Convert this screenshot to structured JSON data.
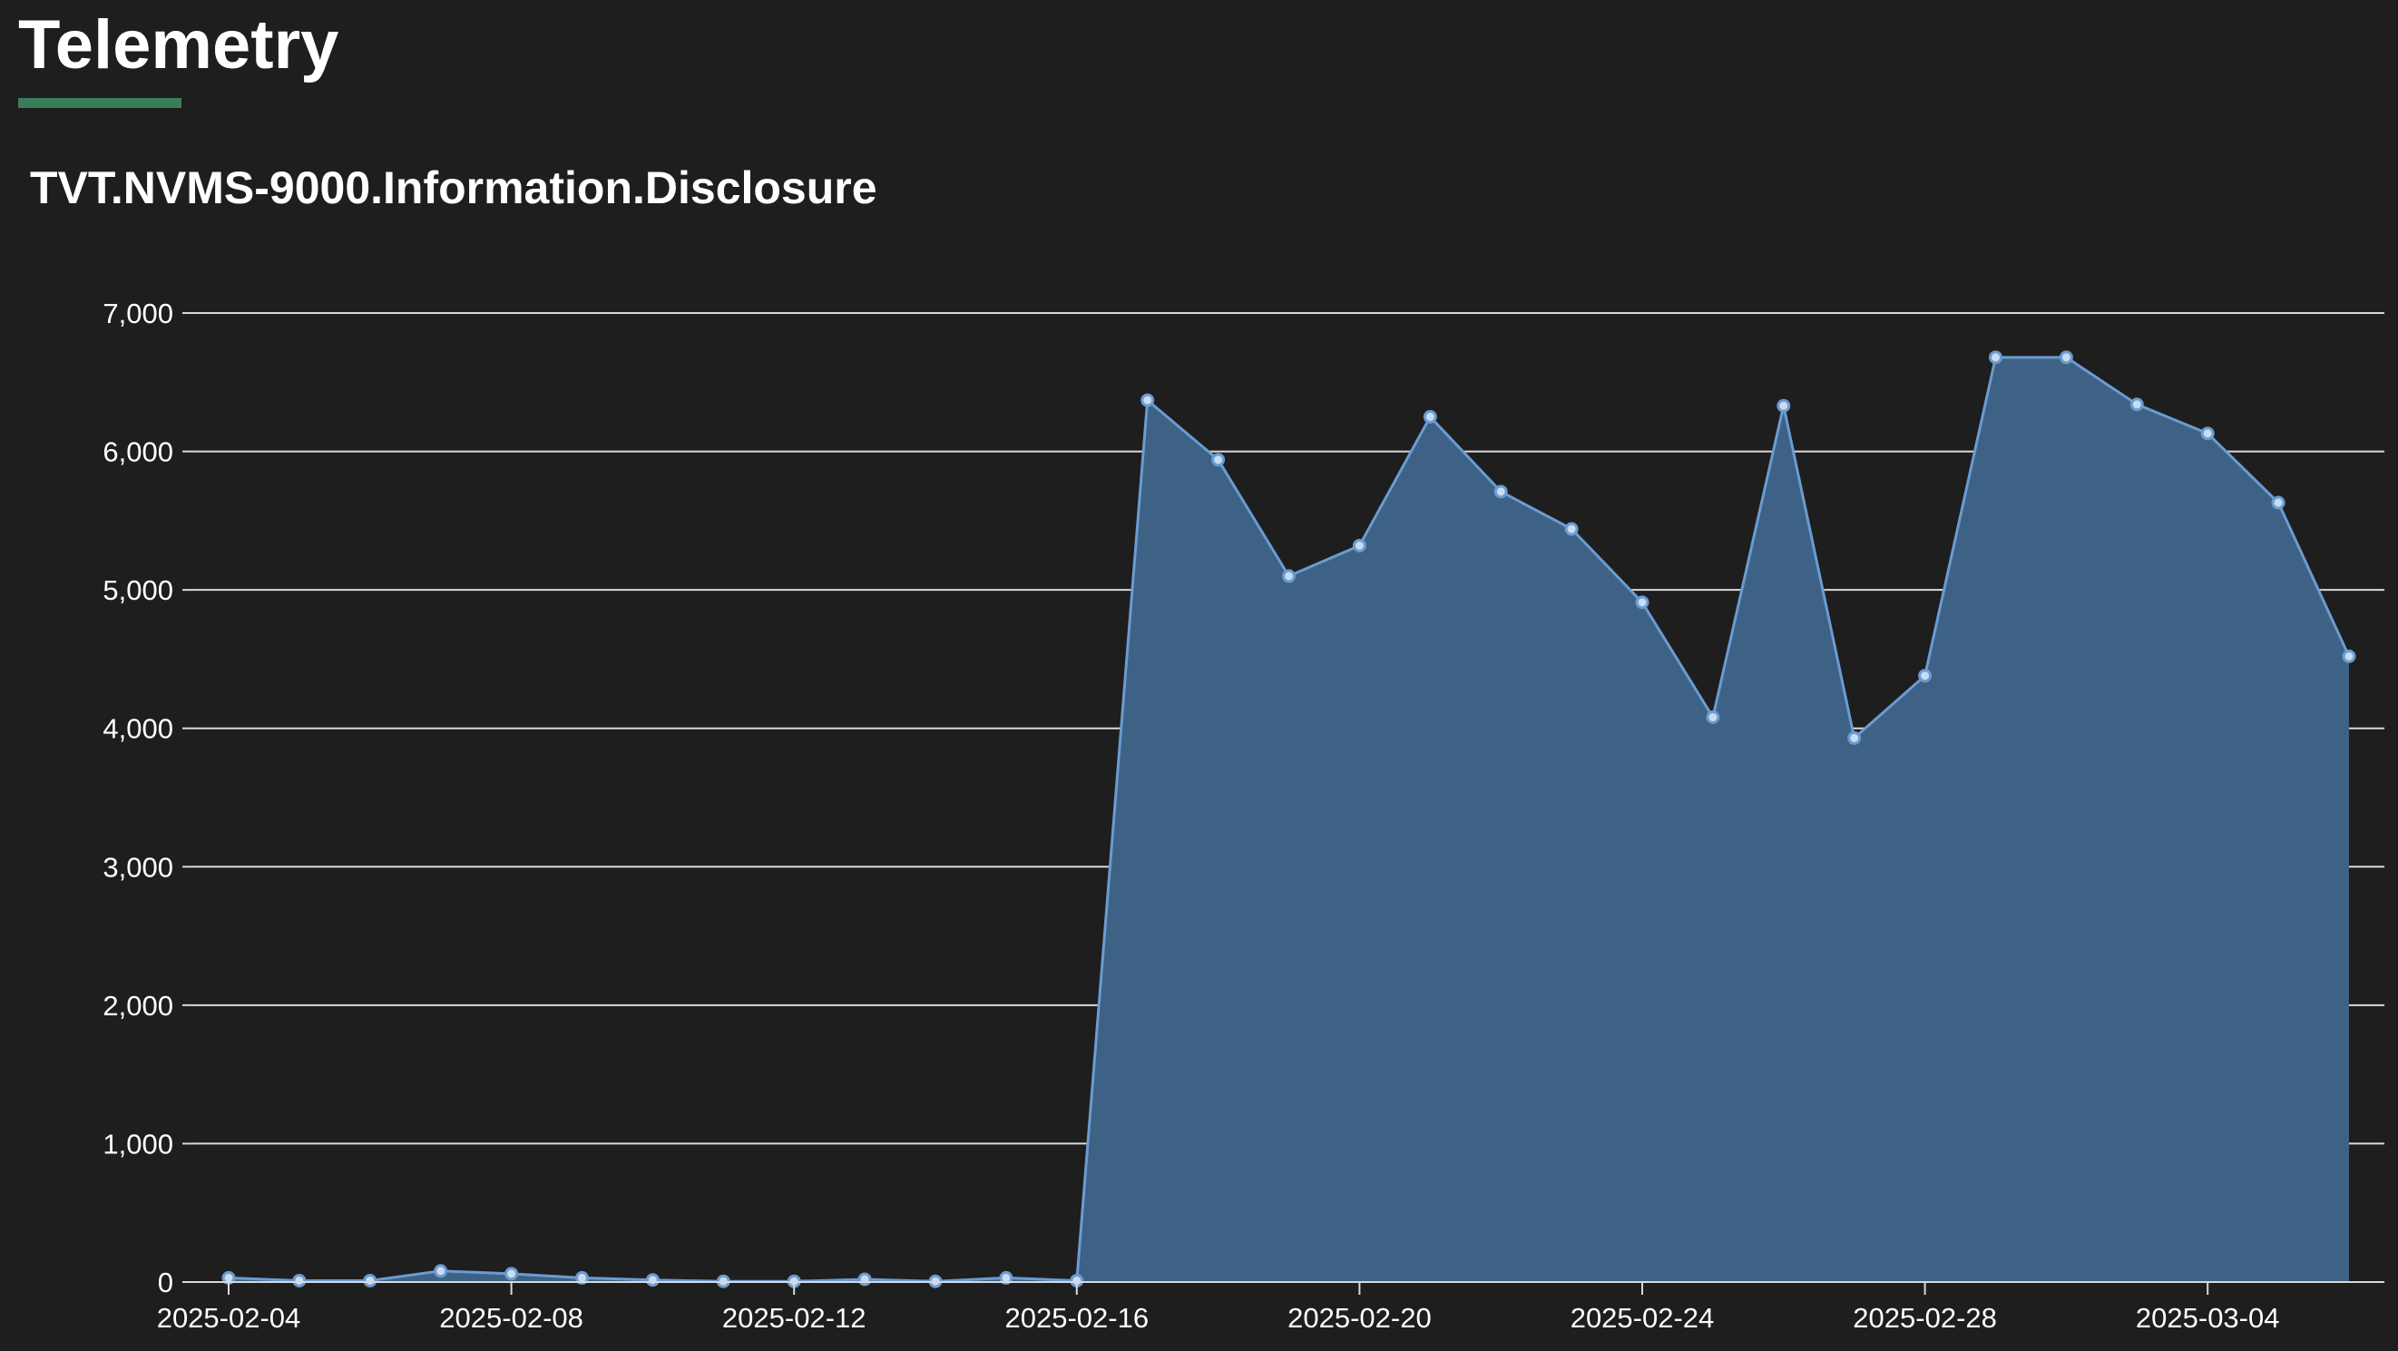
{
  "page": {
    "title": "Telemetry",
    "accent_color": "#3a7d5a"
  },
  "chart_data": {
    "type": "area",
    "title": "TVT.NVMS-9000.Information.Disclosure",
    "xlabel": "",
    "ylabel": "",
    "x": [
      "2025-02-04",
      "2025-02-05",
      "2025-02-06",
      "2025-02-07",
      "2025-02-08",
      "2025-02-09",
      "2025-02-10",
      "2025-02-11",
      "2025-02-12",
      "2025-02-13",
      "2025-02-14",
      "2025-02-15",
      "2025-02-16",
      "2025-02-17",
      "2025-02-18",
      "2025-02-19",
      "2025-02-20",
      "2025-02-21",
      "2025-02-22",
      "2025-02-23",
      "2025-02-24",
      "2025-02-25",
      "2025-02-26",
      "2025-02-27",
      "2025-02-28",
      "2025-03-01",
      "2025-03-02",
      "2025-03-03",
      "2025-03-04",
      "2025-03-05",
      "2025-03-06"
    ],
    "series": [
      {
        "values": [
          30,
          10,
          10,
          80,
          60,
          30,
          15,
          5,
          5,
          20,
          5,
          30,
          10,
          6370,
          5940,
          5100,
          5320,
          6250,
          5710,
          5440,
          4910,
          4080,
          6330,
          3930,
          4380,
          6680,
          6680,
          6340,
          6130,
          5630,
          4520
        ]
      }
    ],
    "ylim": [
      0,
      7000
    ],
    "yticks": [
      0,
      1000,
      2000,
      3000,
      4000,
      5000,
      6000,
      7000
    ],
    "ytick_labels": [
      "0",
      "1,000",
      "2,000",
      "3,000",
      "4,000",
      "5,000",
      "6,000",
      "7,000"
    ],
    "xtick_labels": [
      "2025-02-04",
      "2025-02-08",
      "2025-02-12",
      "2025-02-16",
      "2025-02-20",
      "2025-02-24",
      "2025-02-28",
      "2025-03-04"
    ],
    "grid": true,
    "legend": "none",
    "colors": {
      "fill": "#3d6285",
      "line": "#6b9bd1",
      "point_fill": "#c9dcf0",
      "grid": "#d9d9d9"
    }
  }
}
